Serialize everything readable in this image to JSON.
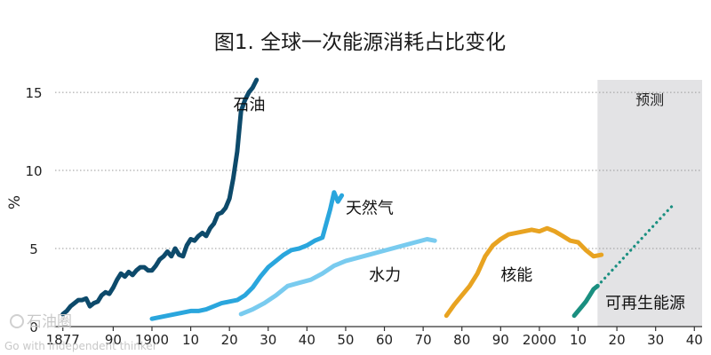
{
  "chart_data": {
    "type": "line",
    "title": "图1. 全球一次能源消耗占比变化",
    "xlabel": "",
    "ylabel": "%",
    "xlim": [
      1875,
      2042
    ],
    "ylim": [
      0,
      15.8
    ],
    "grid": true,
    "y_ticks": [
      0,
      5,
      10,
      15
    ],
    "x_ticks": [
      {
        "value": 1877,
        "label": "1877"
      },
      {
        "value": 1890,
        "label": "90"
      },
      {
        "value": 1900,
        "label": "1900"
      },
      {
        "value": 1910,
        "label": "10"
      },
      {
        "value": 1920,
        "label": "20"
      },
      {
        "value": 1930,
        "label": "30"
      },
      {
        "value": 1940,
        "label": "40"
      },
      {
        "value": 1950,
        "label": "50"
      },
      {
        "value": 1960,
        "label": "60"
      },
      {
        "value": 1970,
        "label": "70"
      },
      {
        "value": 1980,
        "label": "80"
      },
      {
        "value": 1990,
        "label": "90"
      },
      {
        "value": 2000,
        "label": "2000"
      },
      {
        "value": 2010,
        "label": "10"
      },
      {
        "value": 2020,
        "label": "20"
      },
      {
        "value": 2030,
        "label": "30"
      },
      {
        "value": 2040,
        "label": "40"
      }
    ],
    "forecast_region": {
      "start": 2015,
      "end": 2042,
      "label": "预测",
      "color": "#e3e3e5"
    },
    "series": [
      {
        "name": "石油",
        "color": "#0d4a6b",
        "style": "solid",
        "label_at": [
          1921,
          14.2
        ],
        "x": [
          1877,
          1878,
          1879,
          1880,
          1881,
          1882,
          1883,
          1884,
          1885,
          1886,
          1887,
          1888,
          1889,
          1890,
          1891,
          1892,
          1893,
          1894,
          1895,
          1896,
          1897,
          1898,
          1899,
          1900,
          1901,
          1902,
          1903,
          1904,
          1905,
          1906,
          1907,
          1908,
          1909,
          1910,
          1911,
          1912,
          1913,
          1914,
          1915,
          1916,
          1917,
          1918,
          1919,
          1920,
          1921,
          1922,
          1923,
          1924,
          1925,
          1926,
          1927
        ],
        "values": [
          0.8,
          1.0,
          1.3,
          1.5,
          1.7,
          1.7,
          1.8,
          1.3,
          1.5,
          1.6,
          2.0,
          2.2,
          2.1,
          2.5,
          3.0,
          3.4,
          3.2,
          3.5,
          3.3,
          3.6,
          3.8,
          3.8,
          3.6,
          3.6,
          3.9,
          4.3,
          4.5,
          4.8,
          4.5,
          5.0,
          4.6,
          4.5,
          5.2,
          5.6,
          5.5,
          5.8,
          6.0,
          5.8,
          6.3,
          6.6,
          7.2,
          7.3,
          7.6,
          8.2,
          9.5,
          11.2,
          13.8,
          14.5,
          15.0,
          15.3,
          15.8
        ]
      },
      {
        "name": "天然气",
        "color": "#2aa6dd",
        "style": "solid",
        "label_at": [
          1950,
          7.6
        ],
        "x": [
          1900,
          1902,
          1904,
          1906,
          1908,
          1910,
          1912,
          1914,
          1916,
          1918,
          1920,
          1922,
          1924,
          1926,
          1928,
          1930,
          1932,
          1934,
          1936,
          1938,
          1940,
          1942,
          1944,
          1946,
          1947,
          1948,
          1949
        ],
        "values": [
          0.5,
          0.6,
          0.7,
          0.8,
          0.9,
          1.0,
          1.0,
          1.1,
          1.3,
          1.5,
          1.6,
          1.7,
          2.0,
          2.5,
          3.2,
          3.8,
          4.2,
          4.6,
          4.9,
          5.0,
          5.2,
          5.5,
          5.7,
          7.5,
          8.6,
          8.0,
          8.4
        ]
      },
      {
        "name": "水力",
        "color": "#79cbef",
        "style": "solid",
        "label_at": [
          1956,
          3.3
        ],
        "x": [
          1923,
          1926,
          1929,
          1932,
          1935,
          1938,
          1941,
          1944,
          1947,
          1950,
          1953,
          1956,
          1959,
          1962,
          1965,
          1968,
          1971,
          1973
        ],
        "values": [
          0.8,
          1.1,
          1.5,
          2.0,
          2.6,
          2.8,
          3.0,
          3.4,
          3.9,
          4.2,
          4.4,
          4.6,
          4.8,
          5.0,
          5.2,
          5.4,
          5.6,
          5.5
        ]
      },
      {
        "name": "核能",
        "color": "#e8a321",
        "style": "solid",
        "label_at": [
          1990,
          3.3
        ],
        "x": [
          1976,
          1978,
          1980,
          1982,
          1984,
          1986,
          1988,
          1990,
          1992,
          1994,
          1996,
          1998,
          2000,
          2002,
          2004,
          2006,
          2008,
          2010,
          2012,
          2014,
          2016
        ],
        "values": [
          0.7,
          1.4,
          2.0,
          2.6,
          3.4,
          4.5,
          5.2,
          5.6,
          5.9,
          6.0,
          6.1,
          6.2,
          6.1,
          6.3,
          6.1,
          5.8,
          5.5,
          5.4,
          4.9,
          4.5,
          4.6
        ]
      },
      {
        "name": "可再生能源",
        "color": "#1a8f80",
        "style": "solid",
        "label_at": [
          2017,
          1.5
        ],
        "x": [
          2009,
          2010,
          2011,
          2012,
          2013,
          2014,
          2015
        ],
        "values": [
          0.7,
          1.0,
          1.3,
          1.6,
          2.0,
          2.4,
          2.6
        ]
      },
      {
        "name": "可再生能源 (预测)",
        "color": "#1a8f80",
        "style": "dotted",
        "label_at": null,
        "x": [
          2015,
          2018,
          2021,
          2024,
          2027,
          2030,
          2033,
          2035
        ],
        "values": [
          2.6,
          3.4,
          4.2,
          5.0,
          5.8,
          6.6,
          7.4,
          7.9
        ]
      }
    ]
  },
  "watermark": {
    "text": "石油圈",
    "subtext": "Go with Independent thinker"
  }
}
